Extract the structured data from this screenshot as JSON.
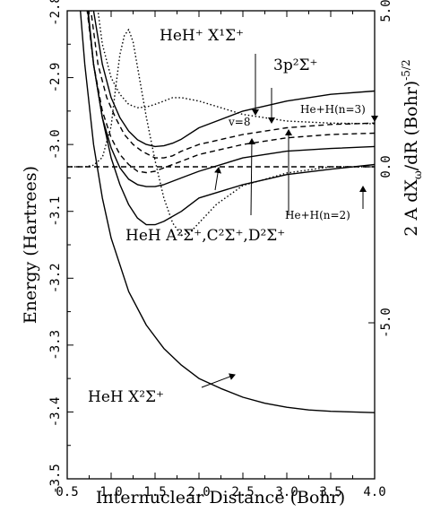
{
  "chart_data": {
    "type": "line",
    "xlabel": "Internuclear Distance (Bohr)",
    "ylabel": "Energy (Hartrees)",
    "y2label": "2 A dX",
    "y2label_sub": "ω",
    "y2label_rest": "/dR (Bohr)",
    "y2label_sup": "-5/2",
    "xlim": [
      0.5,
      4.0
    ],
    "ylim": [
      -3.5,
      -2.8
    ],
    "y2lim": [
      -10.0,
      5.0
    ],
    "x_ticks": [
      "0.5",
      "1.0",
      "1.5",
      "2.0",
      "2.5",
      "3.0",
      "3.5",
      "4.0"
    ],
    "y_ticks": [
      "-2.8",
      "-2.9",
      "-3.0",
      "-3.1",
      "-3.2",
      "-3.3",
      "-3.4",
      "-3.5"
    ],
    "y2_ticks": [
      "5.0",
      "0.0",
      "-5.0"
    ],
    "series": [
      {
        "name": "HeH X²Σ⁺",
        "style": "solid",
        "color": "#000000",
        "x": [
          0.6,
          0.7,
          0.8,
          0.9,
          1.0,
          1.2,
          1.4,
          1.6,
          1.8,
          2.0,
          2.25,
          2.5,
          2.75,
          3.0,
          3.25,
          3.5,
          3.75,
          4.0
        ],
        "y": [
          -2.72,
          -2.88,
          -3.0,
          -3.08,
          -3.14,
          -3.22,
          -3.27,
          -3.305,
          -3.33,
          -3.35,
          -3.365,
          -3.378,
          -3.387,
          -3.393,
          -3.397,
          -3.399,
          -3.4,
          -3.401
        ]
      },
      {
        "name": "HeH A²Σ⁺",
        "style": "solid",
        "color": "#000000",
        "x": [
          0.7,
          0.8,
          0.9,
          1.0,
          1.1,
          1.2,
          1.3,
          1.4,
          1.5,
          1.6,
          1.8,
          2.0,
          2.5,
          3.0,
          3.5,
          4.0
        ],
        "y": [
          -2.75,
          -2.88,
          -2.96,
          -3.02,
          -3.06,
          -3.09,
          -3.11,
          -3.12,
          -3.12,
          -3.115,
          -3.1,
          -3.08,
          -3.06,
          -3.045,
          -3.037,
          -3.03
        ]
      },
      {
        "name": "HeH C²Σ⁺",
        "style": "solid",
        "color": "#000000",
        "x": [
          0.7,
          0.8,
          0.9,
          1.0,
          1.1,
          1.2,
          1.3,
          1.4,
          1.5,
          1.6,
          1.8,
          2.0,
          2.5,
          3.0,
          3.5,
          4.0
        ],
        "y": [
          -2.76,
          -2.88,
          -2.96,
          -3.005,
          -3.035,
          -3.052,
          -3.06,
          -3.063,
          -3.063,
          -3.06,
          -3.05,
          -3.04,
          -3.02,
          -3.01,
          -3.006,
          -3.003
        ]
      },
      {
        "name": "HeH D²Σ⁺",
        "style": "dashed",
        "color": "#000000",
        "x": [
          0.7,
          0.8,
          0.9,
          1.0,
          1.1,
          1.2,
          1.3,
          1.4,
          1.5,
          1.6,
          1.8,
          2.0,
          2.5,
          3.0,
          3.5,
          4.0
        ],
        "y": [
          -2.77,
          -2.88,
          -2.95,
          -2.99,
          -3.015,
          -3.03,
          -3.04,
          -3.042,
          -3.04,
          -3.035,
          -3.025,
          -3.015,
          -3.0,
          -2.99,
          -2.985,
          -2.983
        ]
      },
      {
        "name": "3p²Σ⁺ (lower dashed)",
        "style": "dashed",
        "color": "#000000",
        "x": [
          0.75,
          0.85,
          0.95,
          1.05,
          1.15,
          1.25,
          1.35,
          1.5,
          1.6,
          1.7,
          1.8,
          2.0,
          2.5,
          3.0,
          3.5,
          4.0
        ],
        "y": [
          -2.78,
          -2.88,
          -2.93,
          -2.96,
          -2.985,
          -3.0,
          -3.01,
          -3.02,
          -3.02,
          -3.017,
          -3.01,
          -3.0,
          -2.985,
          -2.975,
          -2.97,
          -2.968
        ]
      },
      {
        "name": "3p²Σ⁺",
        "style": "solid",
        "color": "#000000",
        "x": [
          0.8,
          0.9,
          1.0,
          1.1,
          1.2,
          1.3,
          1.4,
          1.5,
          1.6,
          1.7,
          1.8,
          2.0,
          2.5,
          3.0,
          3.5,
          4.0
        ],
        "y": [
          -2.8,
          -2.88,
          -2.93,
          -2.96,
          -2.98,
          -2.993,
          -3.0,
          -3.003,
          -3.002,
          -2.998,
          -2.992,
          -2.975,
          -2.95,
          -2.935,
          -2.925,
          -2.92
        ]
      },
      {
        "name": "HeH⁺ X¹Σ⁺",
        "style": "dotted",
        "color": "#000000",
        "x": [
          0.8,
          0.9,
          1.0,
          1.1,
          1.2,
          1.3,
          1.4,
          1.5,
          1.6,
          1.7,
          1.8,
          2.0,
          2.5,
          3.0,
          3.5,
          4.0
        ],
        "y": [
          -2.75,
          -2.85,
          -2.9,
          -2.925,
          -2.94,
          -2.945,
          -2.944,
          -2.94,
          -2.935,
          -2.93,
          -2.93,
          -2.935,
          -2.955,
          -2.965,
          -2.968,
          -2.969
        ]
      },
      {
        "name": "2 A dXω/dR",
        "axis": "y2",
        "style": "dotted",
        "color": "#000000",
        "x": [
          0.5,
          0.7,
          0.8,
          0.9,
          1.0,
          1.05,
          1.1,
          1.15,
          1.2,
          1.25,
          1.3,
          1.4,
          1.5,
          1.6,
          1.7,
          1.8,
          1.9,
          2.0,
          2.2,
          2.5,
          3.0,
          3.5,
          4.0
        ],
        "y": [
          0.0,
          0.0,
          0.05,
          0.3,
          1.3,
          2.5,
          3.6,
          4.2,
          4.4,
          4.0,
          3.2,
          1.6,
          0.2,
          -1.0,
          -1.8,
          -2.2,
          -2.1,
          -1.8,
          -1.2,
          -0.6,
          -0.2,
          0.0,
          0.0
        ]
      },
      {
        "name": "y2 zero baseline",
        "axis": "y2",
        "style": "dashed",
        "color": "#000000",
        "x": [
          0.5,
          4.0
        ],
        "y": [
          0.0,
          0.0
        ]
      }
    ],
    "annotations": {
      "hehp_x": "HeH⁺ X¹Σ⁺",
      "p3": "3p²Σ⁺",
      "v8": "v=8",
      "n3": "He+H(n=3)",
      "n2": "He+H(n=2)",
      "acd": "HeH A²Σ⁺,C²Σ⁺,D²Σ⁺",
      "x2": "HeH X²Σ⁺"
    }
  }
}
